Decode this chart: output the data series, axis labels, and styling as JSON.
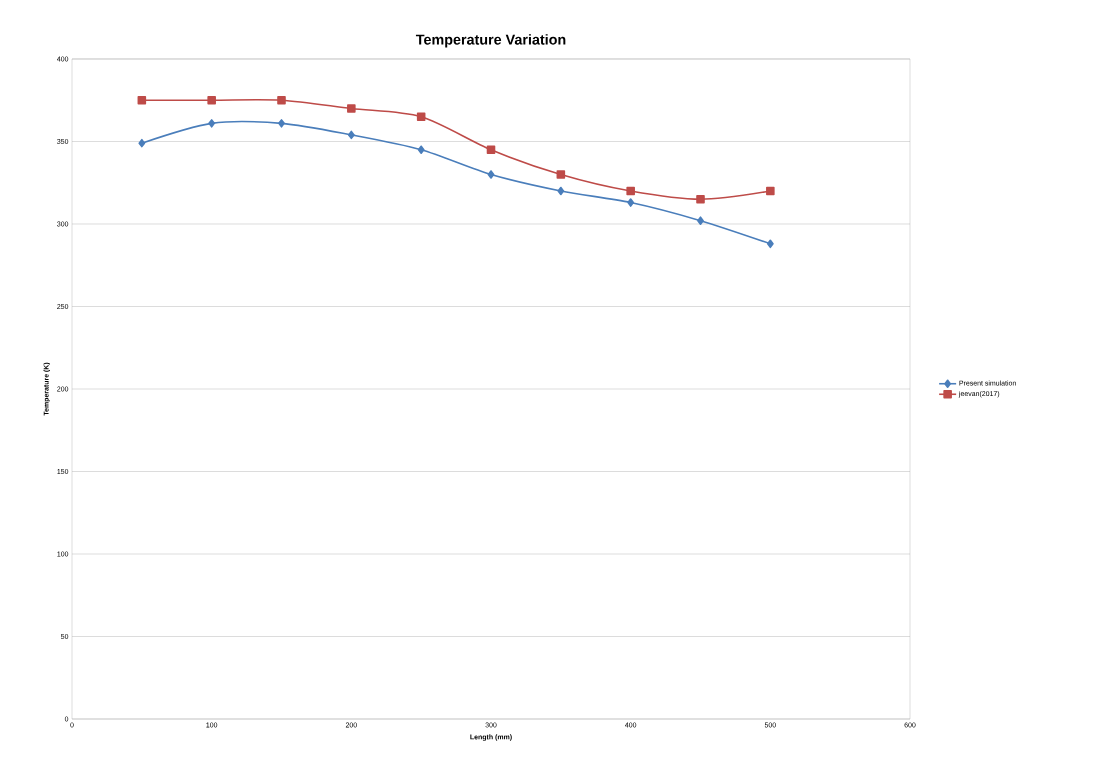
{
  "chart_data": {
    "type": "line",
    "title": "Temperature Variation",
    "xlabel": "Length (mm)",
    "ylabel": "Temperature (K)",
    "x": [
      50,
      100,
      150,
      200,
      250,
      300,
      350,
      400,
      450,
      500
    ],
    "series": [
      {
        "name": "Present simulation",
        "color": "#4a7ebb",
        "marker": "diamond",
        "values": [
          349,
          361,
          361,
          354,
          345,
          330,
          320,
          313,
          302,
          288
        ]
      },
      {
        "name": "jeevan(2017)",
        "color": "#be4b48",
        "marker": "square",
        "values": [
          375,
          375,
          375,
          370,
          365,
          345,
          330,
          320,
          315,
          320
        ]
      }
    ],
    "xlim": [
      0,
      600
    ],
    "xticks": [
      0,
      100,
      200,
      300,
      400,
      500,
      600
    ],
    "ylim": [
      0,
      400
    ],
    "yticks": [
      0,
      50,
      100,
      150,
      200,
      250,
      300,
      350,
      400
    ],
    "grid": "y",
    "legend": "right",
    "line_style": "solid"
  }
}
